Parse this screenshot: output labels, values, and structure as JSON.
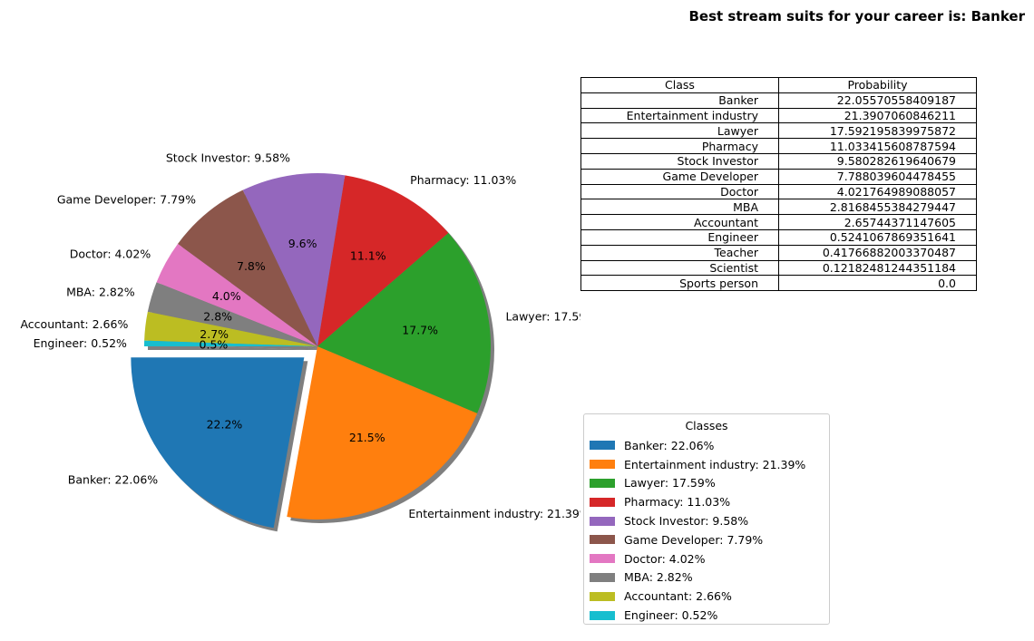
{
  "chart_data": {
    "type": "pie",
    "title": "Best stream suits for your career is: Banker",
    "slices": [
      {
        "label": "Banker: 22.06%",
        "value": 22.0557,
        "autopct": "22.2%",
        "color": "#1f77b4",
        "exploded": true
      },
      {
        "label": "Entertainment industry: 21.39%",
        "value": 21.3907,
        "autopct": "21.5%",
        "color": "#ff7f0e"
      },
      {
        "label": "Lawyer: 17.59%",
        "value": 17.5922,
        "autopct": "17.7%",
        "color": "#2ca02c"
      },
      {
        "label": "Pharmacy: 11.03%",
        "value": 11.0334,
        "autopct": "11.1%",
        "color": "#d62728"
      },
      {
        "label": "Stock Investor: 9.58%",
        "value": 9.5803,
        "autopct": "9.6%",
        "color": "#9467bd"
      },
      {
        "label": "Game Developer: 7.79%",
        "value": 7.788,
        "autopct": "7.8%",
        "color": "#8c564b"
      },
      {
        "label": "Doctor: 4.02%",
        "value": 4.0218,
        "autopct": "4.0%",
        "color": "#e377c2"
      },
      {
        "label": "MBA: 2.82%",
        "value": 2.8168,
        "autopct": "2.8%",
        "color": "#7f7f7f"
      },
      {
        "label": "Accountant: 2.66%",
        "value": 2.6574,
        "autopct": "2.7%",
        "color": "#bcbd22"
      },
      {
        "label": "Engineer: 0.52%",
        "value": 0.5241,
        "autopct": "0.5%",
        "color": "#17becf"
      }
    ],
    "shadow": true,
    "legend": {
      "title": "Classes",
      "placement": "lower-right"
    }
  },
  "table": {
    "headers": [
      "Class",
      "Probability"
    ],
    "rows": [
      [
        "Banker",
        "22.05570558409187"
      ],
      [
        "Entertainment industry",
        "21.3907060846211"
      ],
      [
        "Lawyer",
        "17.592195839975872"
      ],
      [
        "Pharmacy",
        "11.033415608787594"
      ],
      [
        "Stock Investor",
        "9.580282619640679"
      ],
      [
        "Game Developer",
        "7.788039604478455"
      ],
      [
        "Doctor",
        "4.021764989088057"
      ],
      [
        "MBA",
        "2.8168455384279447"
      ],
      [
        "Accountant",
        "2.65744371147605"
      ],
      [
        "Engineer",
        "0.5241067869351641"
      ],
      [
        "Teacher",
        "0.41766882003370487"
      ],
      [
        "Scientist",
        "0.12182481244351184"
      ],
      [
        "Sports person",
        "0.0"
      ]
    ]
  }
}
